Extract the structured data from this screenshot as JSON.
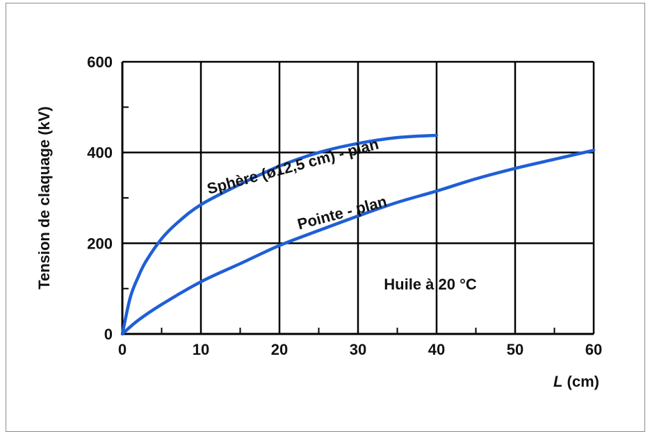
{
  "chart_data": {
    "type": "line",
    "title": "",
    "xlabel": "L (cm)",
    "xlabel_italic_part": "L",
    "xlabel_unit_part": " (cm)",
    "ylabel": "Tension de claquage (kV)",
    "xlim": [
      0,
      60
    ],
    "ylim": [
      0,
      600
    ],
    "xticks": [
      0,
      10,
      20,
      30,
      40,
      50,
      60
    ],
    "yticks": [
      0,
      200,
      400,
      600
    ],
    "xtick_labels": [
      "0",
      "10",
      "20",
      "30",
      "40",
      "50",
      "60"
    ],
    "ytick_labels": [
      "0",
      "200",
      "400",
      "600"
    ],
    "grid": true,
    "line_color": "#1f5fd6",
    "annotation": "Huile à 20 °C",
    "series": [
      {
        "name": "Sphère (ø12,5 cm) - plan",
        "x": [
          0,
          1,
          2,
          3,
          5,
          7,
          10,
          15,
          20,
          25,
          30,
          35,
          40
        ],
        "y": [
          0,
          80,
          125,
          160,
          210,
          245,
          285,
          330,
          370,
          400,
          420,
          433,
          438
        ]
      },
      {
        "name": "Pointe - plan",
        "x": [
          0,
          2,
          5,
          10,
          15,
          20,
          25,
          30,
          35,
          40,
          45,
          50,
          55,
          60
        ],
        "y": [
          0,
          30,
          65,
          115,
          155,
          195,
          228,
          260,
          290,
          315,
          342,
          365,
          385,
          405
        ]
      }
    ]
  }
}
